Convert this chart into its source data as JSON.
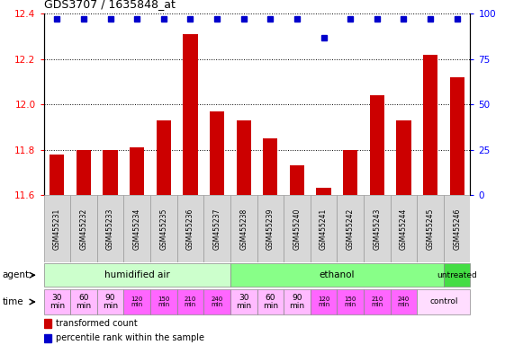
{
  "title": "GDS3707 / 1635848_at",
  "samples": [
    "GSM455231",
    "GSM455232",
    "GSM455233",
    "GSM455234",
    "GSM455235",
    "GSM455236",
    "GSM455237",
    "GSM455238",
    "GSM455239",
    "GSM455240",
    "GSM455241",
    "GSM455242",
    "GSM455243",
    "GSM455244",
    "GSM455245",
    "GSM455246"
  ],
  "bar_values": [
    11.78,
    11.8,
    11.8,
    11.81,
    11.93,
    12.31,
    11.97,
    11.93,
    11.85,
    11.73,
    11.63,
    11.8,
    12.04,
    11.93,
    12.22,
    12.12
  ],
  "percentile_values": [
    97,
    97,
    97,
    97,
    97,
    97,
    97,
    97,
    97,
    97,
    87,
    97,
    97,
    97,
    97,
    97
  ],
  "bar_color": "#cc0000",
  "percentile_color": "#0000cc",
  "ylim_left": [
    11.6,
    12.4
  ],
  "ylim_right": [
    0,
    100
  ],
  "yticks_left": [
    11.6,
    11.8,
    12.0,
    12.2,
    12.4
  ],
  "yticks_right": [
    0,
    25,
    50,
    75,
    100
  ],
  "agent_groups": [
    {
      "label": "humidified air",
      "start": 0,
      "end": 7,
      "color": "#ccffcc"
    },
    {
      "label": "ethanol",
      "start": 7,
      "end": 15,
      "color": "#88ff88"
    },
    {
      "label": "untreated",
      "start": 15,
      "end": 16,
      "color": "#44dd44"
    }
  ],
  "time_labels_14": [
    "30\nmin",
    "60\nmin",
    "90\nmin",
    "120\nmin",
    "150\nmin",
    "210\nmin",
    "240\nmin",
    "30\nmin",
    "60\nmin",
    "90\nmin",
    "120\nmin",
    "150\nmin",
    "210\nmin",
    "240\nmin"
  ],
  "time_colors_14": [
    "#ffbbff",
    "#ffbbff",
    "#ffbbff",
    "#ff66ff",
    "#ff66ff",
    "#ff66ff",
    "#ff66ff",
    "#ffbbff",
    "#ffbbff",
    "#ffbbff",
    "#ff66ff",
    "#ff66ff",
    "#ff66ff",
    "#ff66ff"
  ],
  "time_control_color": "#ffddff",
  "legend_bar_label": "transformed count",
  "legend_pct_label": "percentile rank within the sample",
  "bar_width": 0.55,
  "sample_bg": "#d8d8d8",
  "bg_white": "#ffffff"
}
